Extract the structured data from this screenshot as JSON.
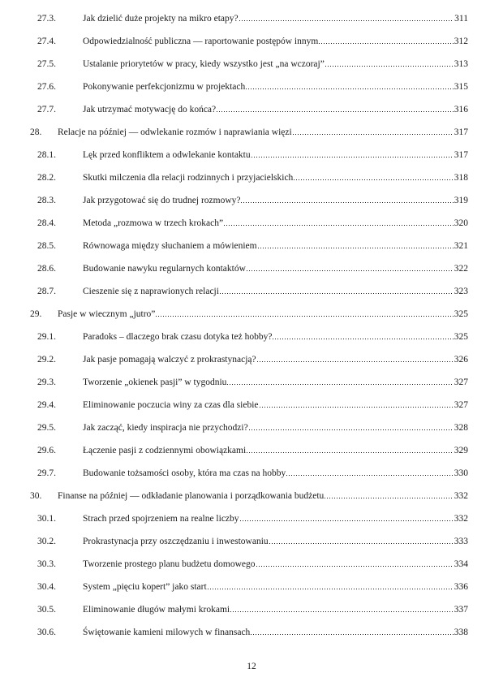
{
  "page": {
    "background_color": "#ffffff",
    "text_color": "#1a1a1a",
    "footer_page_number": "12"
  },
  "toc": {
    "entries": [
      {
        "level": 2,
        "number": "27.3.",
        "title": "Jak dzielić duże projekty na mikro etapy?",
        "page": "311"
      },
      {
        "level": 2,
        "number": "27.4.",
        "title": "Odpowiedzialność publiczna — raportowanie postępów innym",
        "page": "312"
      },
      {
        "level": 2,
        "number": "27.5.",
        "title": "Ustalanie priorytetów w pracy, kiedy wszystko jest „na wczoraj”",
        "page": "313"
      },
      {
        "level": 2,
        "number": "27.6.",
        "title": "Pokonywanie perfekcjonizmu w projektach",
        "page": "315"
      },
      {
        "level": 2,
        "number": "27.7.",
        "title": "Jak utrzymać motywację do końca?",
        "page": "316"
      },
      {
        "level": 1,
        "number": "28.",
        "title": "Relacje na później — odwlekanie rozmów i naprawiania więzi",
        "page": "317"
      },
      {
        "level": 2,
        "number": "28.1.",
        "title": "Lęk przed konfliktem a odwlekanie kontaktu",
        "page": "317"
      },
      {
        "level": 2,
        "number": "28.2.",
        "title": "Skutki milczenia dla relacji rodzinnych i przyjacielskich",
        "page": "318"
      },
      {
        "level": 2,
        "number": "28.3.",
        "title": "Jak przygotować się do trudnej rozmowy?",
        "page": "319"
      },
      {
        "level": 2,
        "number": "28.4.",
        "title": "Metoda „rozmowa w trzech krokach”",
        "page": "320"
      },
      {
        "level": 2,
        "number": "28.5.",
        "title": "Równowaga między słuchaniem a mówieniem",
        "page": "321"
      },
      {
        "level": 2,
        "number": "28.6.",
        "title": "Budowanie nawyku regularnych kontaktów",
        "page": "322"
      },
      {
        "level": 2,
        "number": "28.7.",
        "title": "Cieszenie się z naprawionych relacji",
        "page": "323"
      },
      {
        "level": 1,
        "number": "29.",
        "title": "Pasje w wiecznym „jutro”",
        "page": "325"
      },
      {
        "level": 2,
        "number": "29.1.",
        "title": "Paradoks – dlaczego brak czasu dotyka też hobby?",
        "page": "325"
      },
      {
        "level": 2,
        "number": "29.2.",
        "title": "Jak pasje pomagają walczyć z prokrastynacją?",
        "page": "326"
      },
      {
        "level": 2,
        "number": "29.3.",
        "title": "Tworzenie „okienek pasji” w tygodniu",
        "page": "327"
      },
      {
        "level": 2,
        "number": "29.4.",
        "title": "Eliminowanie poczucia winy za czas dla siebie",
        "page": "327"
      },
      {
        "level": 2,
        "number": "29.5.",
        "title": "Jak zacząć, kiedy inspiracja nie przychodzi?",
        "page": "328"
      },
      {
        "level": 2,
        "number": "29.6.",
        "title": "Łączenie pasji z codziennymi obowiązkami",
        "page": "329"
      },
      {
        "level": 2,
        "number": "29.7.",
        "title": "Budowanie tożsamości osoby, która ma czas na hobby",
        "page": "330"
      },
      {
        "level": 1,
        "number": "30.",
        "title": "Finanse na później — odkładanie planowania i porządkowania budżetu",
        "page": "332"
      },
      {
        "level": 2,
        "number": "30.1.",
        "title": "Strach przed spojrzeniem na realne liczby",
        "page": "332"
      },
      {
        "level": 2,
        "number": "30.2.",
        "title": "Prokrastynacja przy oszczędzaniu i inwestowaniu",
        "page": "333"
      },
      {
        "level": 2,
        "number": "30.3.",
        "title": "Tworzenie prostego planu budżetu domowego",
        "page": "334"
      },
      {
        "level": 2,
        "number": "30.4.",
        "title": "System „pięciu kopert” jako start",
        "page": "336"
      },
      {
        "level": 2,
        "number": "30.5.",
        "title": "Eliminowanie długów małymi krokami",
        "page": "337"
      },
      {
        "level": 2,
        "number": "30.6.",
        "title": "Świętowanie kamieni milowych w finansach",
        "page": "338"
      }
    ]
  }
}
